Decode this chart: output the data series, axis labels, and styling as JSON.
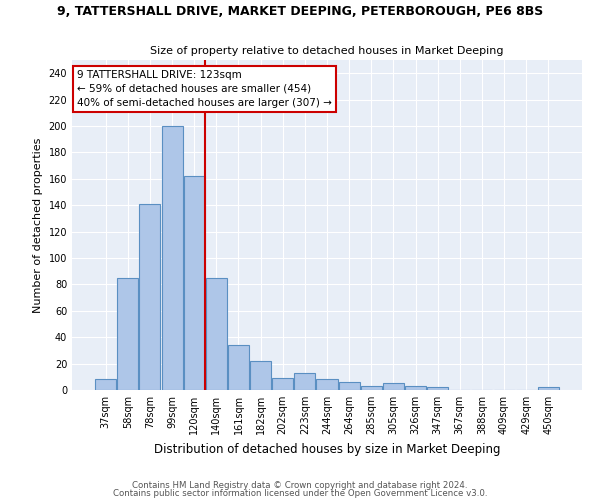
{
  "title1": "9, TATTERSHALL DRIVE, MARKET DEEPING, PETERBOROUGH, PE6 8BS",
  "title2": "Size of property relative to detached houses in Market Deeping",
  "xlabel": "Distribution of detached houses by size in Market Deeping",
  "ylabel": "Number of detached properties",
  "categories": [
    "37sqm",
    "58sqm",
    "78sqm",
    "99sqm",
    "120sqm",
    "140sqm",
    "161sqm",
    "182sqm",
    "202sqm",
    "223sqm",
    "244sqm",
    "264sqm",
    "285sqm",
    "305sqm",
    "326sqm",
    "347sqm",
    "367sqm",
    "388sqm",
    "409sqm",
    "429sqm",
    "450sqm"
  ],
  "values": [
    8,
    85,
    141,
    200,
    162,
    85,
    34,
    22,
    9,
    13,
    8,
    6,
    3,
    5,
    3,
    2,
    0,
    0,
    0,
    0,
    2
  ],
  "bar_color": "#aec6e8",
  "bar_edge_color": "#5a8fc2",
  "vline_x": 4.5,
  "annotation_text": "9 TATTERSHALL DRIVE: 123sqm\n← 59% of detached houses are smaller (454)\n40% of semi-detached houses are larger (307) →",
  "vline_color": "#cc0000",
  "annotation_box_color": "#ffffff",
  "annotation_box_edge": "#cc0000",
  "footnote1": "Contains HM Land Registry data © Crown copyright and database right 2024.",
  "footnote2": "Contains public sector information licensed under the Open Government Licence v3.0.",
  "ylim": [
    0,
    250
  ],
  "yticks": [
    0,
    20,
    40,
    60,
    80,
    100,
    120,
    140,
    160,
    180,
    200,
    220,
    240
  ],
  "bg_color": "#e8eef7",
  "fig_bg_color": "#ffffff"
}
